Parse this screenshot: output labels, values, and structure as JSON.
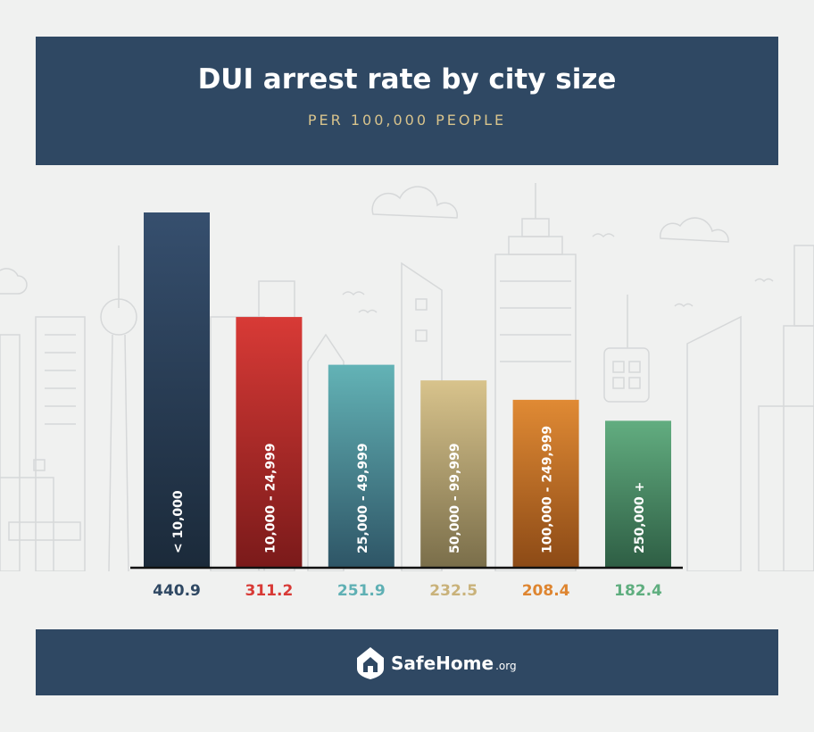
{
  "header": {
    "title": "DUI arrest rate by city size",
    "subtitle": "PER 100,000 PEOPLE"
  },
  "chart_data": {
    "type": "bar",
    "title": "DUI arrest rate by city size",
    "subtitle": "PER 100,000 PEOPLE",
    "categories": [
      "< 10,000",
      "10,000 - 24,999",
      "25,000 - 49,999",
      "50,000 - 99,999",
      "100,000 - 249,999",
      "250,000 +"
    ],
    "values": [
      440.9,
      311.2,
      251.9,
      232.5,
      208.4,
      182.4
    ],
    "value_labels": [
      "440.9",
      "311.2",
      "251.9",
      "232.5",
      "208.4",
      "182.4"
    ],
    "colors": [
      [
        "#364f6e",
        "#1b2a3a"
      ],
      [
        "#d83a36",
        "#7a1a1a"
      ],
      [
        "#63b3b6",
        "#2e5566"
      ],
      [
        "#d8c38c",
        "#7a6e4a"
      ],
      [
        "#e08a34",
        "#8c4a16"
      ],
      [
        "#62ad80",
        "#2e5e44"
      ]
    ],
    "value_label_colors": [
      "#2f4863",
      "#d83a36",
      "#5fb0b4",
      "#c9b27a",
      "#de8530",
      "#5fae7f"
    ],
    "ylim": [
      0,
      440.9
    ],
    "grid": false,
    "legend": "none"
  },
  "footer": {
    "brand_name": "SafeHome",
    "brand_tld": ".org"
  }
}
